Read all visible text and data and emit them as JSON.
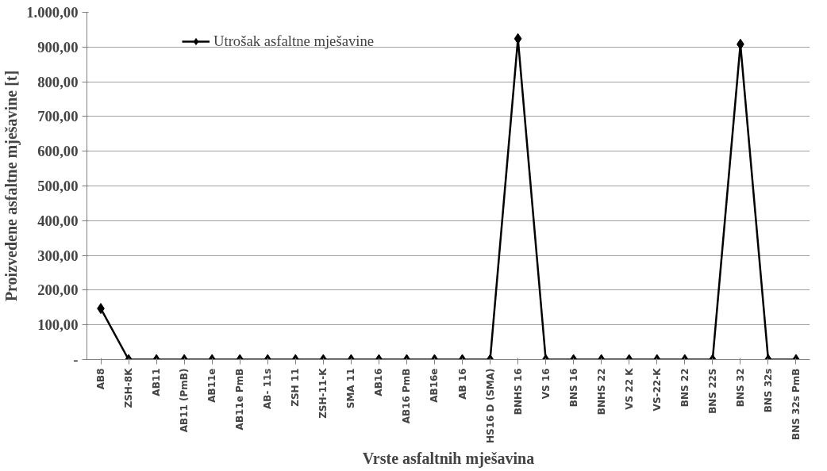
{
  "chart_data": {
    "type": "line",
    "xlabel": "Vrste asfaltnih mješavina",
    "ylabel": "Proizvedene asfaltne mješavine [t]",
    "categories": [
      "AB8",
      "ZSH-8K",
      "AB11",
      "AB11 (PmB)",
      "AB11e",
      "AB11e PmB",
      "AB- 11s",
      "ZSH 11",
      "ZSH-11-K",
      "SMA 11",
      "AB16",
      "AB16 PmB",
      "AB16e",
      "AB 16",
      "HS16 D (SMA)",
      "BNHS 16",
      "VS 16",
      "BNS 16",
      "BNHS 22",
      "VS 22 K",
      "VS-22-K",
      "BNS 22",
      "BNS 22S",
      "BNS 32",
      "BNS 32s",
      "BNS 32s PmB"
    ],
    "series": [
      {
        "name": "Utrošak asfaltne mješavine",
        "color": "#000000",
        "values": [
          147,
          0,
          0,
          0,
          0,
          0,
          0,
          0,
          0,
          0,
          0,
          0,
          0,
          0,
          0,
          924,
          0,
          0,
          0,
          0,
          0,
          0,
          0,
          908,
          0,
          0
        ]
      }
    ],
    "ylim": [
      0,
      1000
    ],
    "yticks": [
      {
        "value": 0,
        "label": "-"
      },
      {
        "value": 100,
        "label": "100,00"
      },
      {
        "value": 200,
        "label": "200,00"
      },
      {
        "value": 300,
        "label": "300,00"
      },
      {
        "value": 400,
        "label": "400,00"
      },
      {
        "value": 500,
        "label": "500,00"
      },
      {
        "value": 600,
        "label": "600,00"
      },
      {
        "value": 700,
        "label": "700,00"
      },
      {
        "value": 800,
        "label": "800,00"
      },
      {
        "value": 900,
        "label": "900,00"
      },
      {
        "value": 1000,
        "label": "1.000,00"
      }
    ],
    "grid": "y",
    "legend": "top left",
    "marker": "diamond",
    "line_style": "solid"
  }
}
